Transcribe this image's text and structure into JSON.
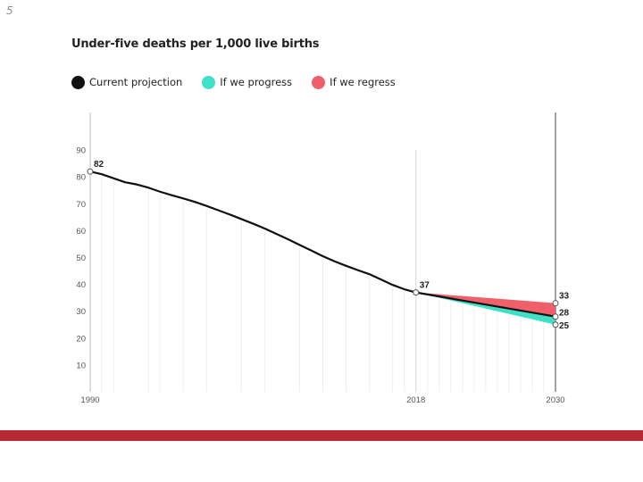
{
  "slide": {
    "number": "5"
  },
  "colors": {
    "current": "#111111",
    "progress": "#3fe0c5",
    "regress": "#f0606a",
    "footer": "#b52a35",
    "grid": "#dddddd",
    "axis_text": "#555555"
  },
  "chart_data": {
    "type": "line",
    "title": "Under-five deaths per 1,000 live births",
    "xlabel": "",
    "ylabel": "",
    "xlim": [
      1990,
      2030
    ],
    "ylim": [
      0,
      100
    ],
    "x_ticks": [
      1990,
      2018,
      2030
    ],
    "y_ticks": [
      10,
      20,
      30,
      40,
      50,
      60,
      70,
      80,
      90
    ],
    "legend": [
      {
        "name": "Current projection",
        "color_key": "current"
      },
      {
        "name": "If we progress",
        "color_key": "progress"
      },
      {
        "name": "If we regress",
        "color_key": "regress"
      }
    ],
    "legend_position": "top-left",
    "series": [
      {
        "name": "Current projection",
        "x": [
          1990,
          1991,
          1992,
          1993,
          1994,
          1995,
          1996,
          1997,
          1998,
          1999,
          2000,
          2001,
          2002,
          2003,
          2004,
          2005,
          2006,
          2007,
          2008,
          2009,
          2010,
          2011,
          2012,
          2013,
          2014,
          2015,
          2016,
          2017,
          2018,
          2020,
          2022,
          2024,
          2026,
          2028,
          2030
        ],
        "y": [
          82,
          81,
          79.5,
          78,
          77.2,
          76,
          74.5,
          73.2,
          72,
          70.7,
          69.2,
          67.6,
          66,
          64.3,
          62.6,
          60.8,
          58.8,
          56.8,
          54.7,
          52.6,
          50.5,
          48.6,
          46.9,
          45.3,
          43.8,
          41.8,
          39.8,
          38.2,
          37,
          35.5,
          34,
          32.5,
          31,
          29.5,
          28
        ]
      },
      {
        "name": "If we progress",
        "x": [
          2018,
          2030
        ],
        "y": [
          37,
          25
        ]
      },
      {
        "name": "If we regress",
        "x": [
          2018,
          2030
        ],
        "y": [
          37,
          33
        ]
      }
    ],
    "data_labels": [
      {
        "x": 1990,
        "y": 82,
        "text": "82"
      },
      {
        "x": 2018,
        "y": 37,
        "text": "37"
      },
      {
        "x": 2030,
        "y": 33,
        "text": "33"
      },
      {
        "x": 2030,
        "y": 28,
        "text": "28"
      },
      {
        "x": 2030,
        "y": 25,
        "text": "25"
      }
    ],
    "grid": true
  }
}
